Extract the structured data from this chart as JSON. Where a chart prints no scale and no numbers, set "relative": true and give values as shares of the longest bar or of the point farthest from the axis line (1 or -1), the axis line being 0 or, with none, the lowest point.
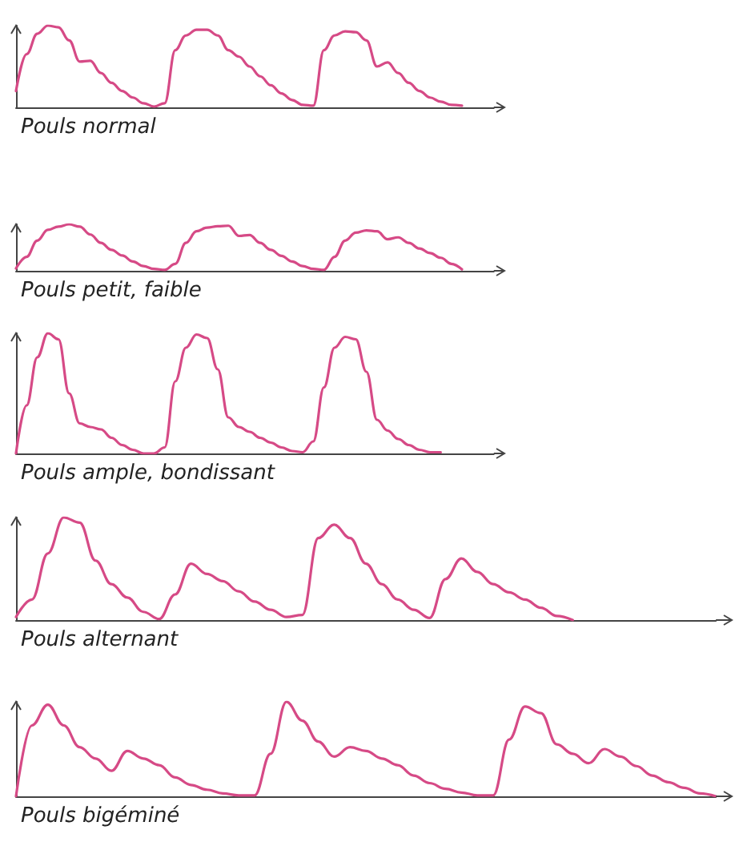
{
  "chart_data": [
    {
      "type": "line",
      "relative": true,
      "title": "Pouls normal",
      "marker": "none",
      "categories": [
        null,
        null,
        null,
        null,
        null,
        null,
        null,
        null,
        null,
        null,
        null,
        null,
        null,
        null,
        null,
        null,
        null,
        null,
        null,
        null,
        null,
        null,
        null,
        null,
        null,
        null,
        null,
        null,
        null,
        null,
        null,
        null,
        null,
        null,
        null,
        null,
        null,
        null,
        null,
        null,
        null,
        null,
        null,
        null,
        null,
        null
      ],
      "series": [
        {
          "color": "#d64a86",
          "values": [
            0.2,
            0.65,
            0.9,
            1.0,
            0.98,
            0.82,
            0.56,
            0.57,
            0.42,
            0.3,
            0.2,
            0.12,
            0.05,
            0.01,
            0.05,
            0.7,
            0.88,
            0.95,
            0.95,
            0.88,
            0.7,
            0.62,
            0.5,
            0.38,
            0.27,
            0.17,
            0.09,
            0.03,
            0.02,
            0.7,
            0.88,
            0.93,
            0.92,
            0.82,
            0.5,
            0.55,
            0.42,
            0.3,
            0.2,
            0.12,
            0.07,
            0.03,
            0.02,
            null,
            null,
            null
          ]
        }
      ]
    },
    {
      "type": "line",
      "relative": true,
      "title": "Pouls petit, faible",
      "marker": "none",
      "categories": [
        null,
        null,
        null,
        null,
        null,
        null,
        null,
        null,
        null,
        null,
        null,
        null,
        null,
        null,
        null,
        null,
        null,
        null,
        null,
        null,
        null,
        null,
        null,
        null,
        null,
        null,
        null,
        null,
        null,
        null,
        null,
        null,
        null,
        null,
        null,
        null,
        null,
        null,
        null,
        null,
        null,
        null,
        null,
        null,
        null,
        null
      ],
      "series": [
        {
          "color": "#d64a86",
          "values": [
            0.05,
            0.3,
            0.65,
            0.88,
            0.95,
            1.0,
            0.95,
            0.78,
            0.6,
            0.45,
            0.33,
            0.2,
            0.1,
            0.04,
            0.02,
            0.15,
            0.6,
            0.85,
            0.93,
            0.96,
            0.97,
            0.75,
            0.77,
            0.6,
            0.45,
            0.32,
            0.2,
            0.1,
            0.04,
            0.02,
            0.3,
            0.65,
            0.82,
            0.87,
            0.85,
            0.68,
            0.72,
            0.6,
            0.48,
            0.38,
            0.28,
            0.15,
            0.03,
            null,
            null,
            null
          ]
        }
      ]
    },
    {
      "type": "line",
      "relative": true,
      "title": "Pouls ample, bondissant",
      "marker": "none",
      "categories": [
        null,
        null,
        null,
        null,
        null,
        null,
        null,
        null,
        null,
        null,
        null,
        null,
        null,
        null,
        null,
        null,
        null,
        null,
        null,
        null,
        null,
        null,
        null,
        null,
        null,
        null,
        null,
        null,
        null,
        null,
        null,
        null,
        null,
        null,
        null,
        null,
        null,
        null,
        null,
        null,
        null,
        null,
        null,
        null,
        null,
        null
      ],
      "series": [
        {
          "color": "#d64a86",
          "values": [
            0.0,
            0.4,
            0.8,
            1.0,
            0.95,
            0.5,
            0.25,
            0.22,
            0.2,
            0.13,
            0.07,
            0.03,
            0.0,
            0.0,
            0.05,
            0.6,
            0.88,
            0.99,
            0.96,
            0.7,
            0.3,
            0.22,
            0.18,
            0.13,
            0.09,
            0.05,
            0.02,
            0.01,
            0.1,
            0.55,
            0.88,
            0.97,
            0.95,
            0.68,
            0.28,
            0.19,
            0.12,
            0.07,
            0.03,
            0.01,
            0.01,
            null,
            null,
            null,
            null,
            null
          ]
        }
      ]
    },
    {
      "type": "line",
      "relative": true,
      "title": "Pouls alternant",
      "marker": "none",
      "categories": [
        null,
        null,
        null,
        null,
        null,
        null,
        null,
        null,
        null,
        null,
        null,
        null,
        null,
        null,
        null,
        null,
        null,
        null,
        null,
        null,
        null,
        null,
        null,
        null,
        null,
        null,
        null,
        null,
        null,
        null,
        null,
        null,
        null,
        null,
        null,
        null,
        null,
        null,
        null,
        null,
        null,
        null,
        null,
        null,
        null
      ],
      "series": [
        {
          "color": "#d64a86",
          "values": [
            0.03,
            0.2,
            0.65,
            1.0,
            0.95,
            0.58,
            0.35,
            0.22,
            0.08,
            0.01,
            0.25,
            0.55,
            0.45,
            0.38,
            0.28,
            0.18,
            0.1,
            0.03,
            0.05,
            0.8,
            0.93,
            0.8,
            0.55,
            0.35,
            0.2,
            0.1,
            0.02,
            0.4,
            0.6,
            0.47,
            0.35,
            0.27,
            0.2,
            0.12,
            0.04,
            0.0,
            null,
            null,
            null,
            null,
            null,
            null,
            null,
            null,
            null
          ]
        }
      ]
    },
    {
      "type": "line",
      "relative": true,
      "title": "Pouls bigéminé",
      "marker": "none",
      "categories": [
        null,
        null,
        null,
        null,
        null,
        null,
        null,
        null,
        null,
        null,
        null,
        null,
        null,
        null,
        null,
        null,
        null,
        null,
        null,
        null,
        null,
        null,
        null,
        null,
        null,
        null,
        null,
        null,
        null,
        null,
        null,
        null,
        null,
        null,
        null,
        null,
        null,
        null,
        null,
        null,
        null,
        null,
        null,
        null,
        null
      ],
      "series": [
        {
          "color": "#d64a86",
          "values": [
            0.0,
            0.75,
            0.97,
            0.75,
            0.52,
            0.4,
            0.27,
            0.48,
            0.4,
            0.33,
            0.2,
            0.12,
            0.07,
            0.03,
            0.01,
            0.01,
            0.45,
            1.0,
            0.8,
            0.58,
            0.42,
            0.52,
            0.48,
            0.4,
            0.33,
            0.22,
            0.14,
            0.08,
            0.04,
            0.01,
            0.01,
            0.6,
            0.95,
            0.88,
            0.55,
            0.45,
            0.35,
            0.5,
            0.42,
            0.32,
            0.22,
            0.15,
            0.09,
            0.03,
            0.0
          ]
        }
      ]
    }
  ]
}
